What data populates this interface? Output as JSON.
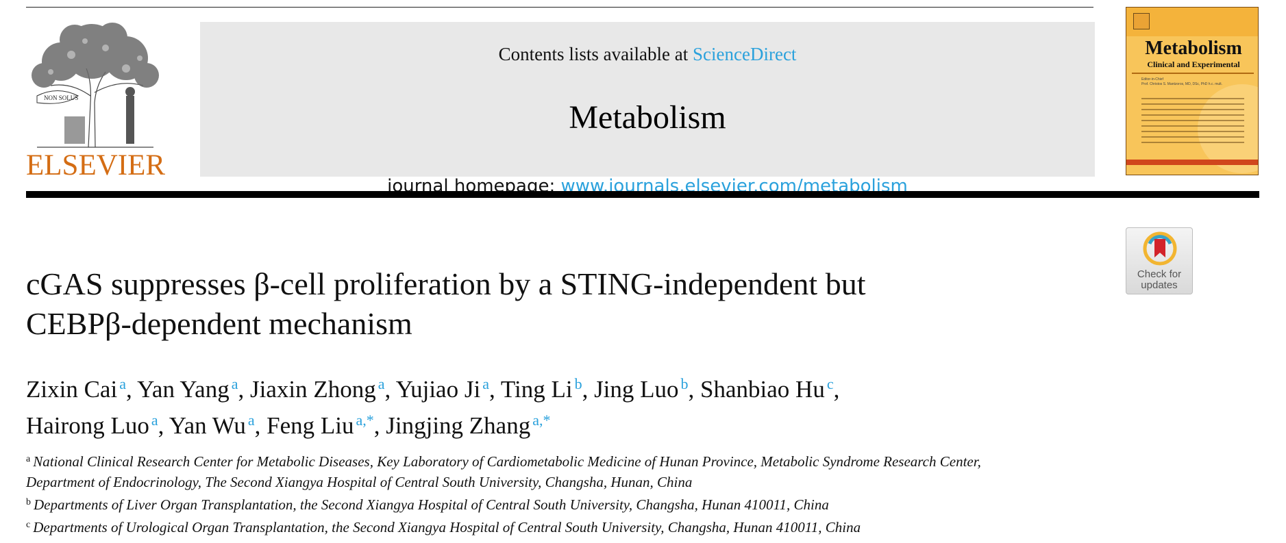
{
  "publisher": {
    "logo_text": "ELSEVIER",
    "motto": "NON SOLUS"
  },
  "header": {
    "contents_prefix": "Contents lists available at",
    "contents_link": "ScienceDirect",
    "journal_title": "Metabolism",
    "homepage_prefix": "journal homepage:",
    "homepage_url": "www.journals.elsevier.com/metabolism"
  },
  "cover": {
    "title": "Metabolism",
    "subtitle": "Clinical and Experimental",
    "editor_label": "Editor-in-Chief",
    "editor_name": "Prof. Christos S. Mantzoros, MD, DSc, PhD h.c. mult."
  },
  "badge": {
    "line1": "Check for",
    "line2": "updates"
  },
  "article": {
    "title_line1": "cGAS suppresses β-cell proliferation by a STING-independent but",
    "title_line2": "CEBPβ-dependent mechanism"
  },
  "authors": [
    {
      "name": "Zixin Cai",
      "aff": "a",
      "sep": ", "
    },
    {
      "name": "Yan Yang",
      "aff": "a",
      "sep": ", "
    },
    {
      "name": "Jiaxin Zhong",
      "aff": "a",
      "sep": ", "
    },
    {
      "name": "Yujiao Ji",
      "aff": "a",
      "sep": ", "
    },
    {
      "name": "Ting Li",
      "aff": "b",
      "sep": ", "
    },
    {
      "name": "Jing Luo",
      "aff": "b",
      "sep": ", "
    },
    {
      "name": "Shanbiao Hu",
      "aff": "c",
      "sep": ","
    },
    {
      "name": "Hairong Luo",
      "aff": "a",
      "sep": ", "
    },
    {
      "name": "Yan Wu",
      "aff": "a",
      "sep": ", "
    },
    {
      "name": "Feng Liu",
      "aff": "a,*",
      "sep": ", "
    },
    {
      "name": "Jingjing Zhang",
      "aff": "a,*",
      "sep": ""
    }
  ],
  "affiliations": [
    {
      "marker": "a",
      "line1": "National Clinical Research Center for Metabolic Diseases, Key Laboratory of Cardiometabolic Medicine of Hunan Province, Metabolic Syndrome Research Center,",
      "line2": "Department of Endocrinology, The Second Xiangya Hospital of Central South University, Changsha, Hunan, China"
    },
    {
      "marker": "b",
      "line1": "Departments of Liver Organ Transplantation, the Second Xiangya Hospital of Central South University, Changsha, Hunan 410011, China"
    },
    {
      "marker": "c",
      "line1": "Departments of Urological Organ Transplantation, the Second Xiangya Hospital of Central South University, Changsha, Hunan 410011, China"
    }
  ],
  "colors": {
    "link": "#2aa1dc",
    "elsevier_orange": "#d46d14",
    "banner_bg": "#e8e8e8"
  }
}
